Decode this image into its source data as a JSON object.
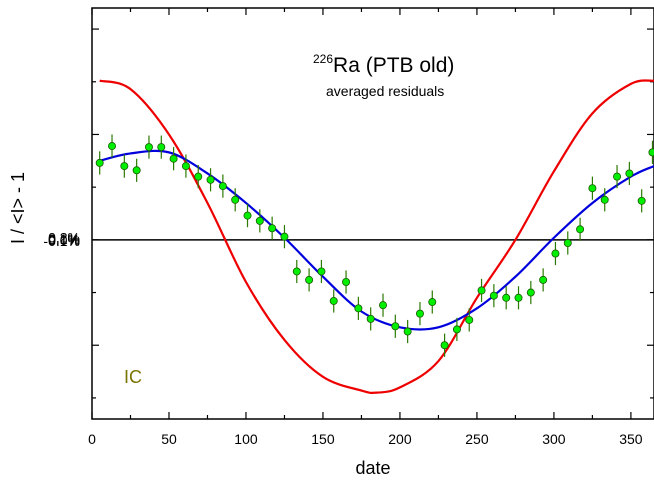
{
  "chart_data": {
    "type": "scatter",
    "title_sup": "226",
    "title_main": "Ra (PTB old)",
    "subtitle": "averaged residuals",
    "xlabel": "date",
    "ylabel": "I / <I> - 1",
    "xlim": [
      0,
      365
    ],
    "ylim": [
      -0.17,
      0.22
    ],
    "xticks": [
      "0",
      "50",
      "100",
      "150",
      "200",
      "250",
      "300",
      "350"
    ],
    "yticks": [
      "0.2%",
      "0.1%",
      "0.0%",
      "-0.1%"
    ],
    "ytick_values": [
      0.2,
      0.1,
      0.0,
      -0.1
    ],
    "xtick_values": [
      0,
      50,
      100,
      150,
      200,
      250,
      300,
      350
    ],
    "annotation": "IC",
    "colors": {
      "points": "#00ee00",
      "errorbars": "#2a7a00",
      "fit": "#0000dd",
      "reference": "#ee0000",
      "zero_line": "#000000",
      "annotation": "#7a7400"
    },
    "series": [
      {
        "kind": "points",
        "x": [
          5,
          13,
          21,
          29,
          37,
          45,
          53,
          61,
          69,
          77,
          85,
          93,
          101,
          109,
          117,
          125,
          133,
          141,
          149,
          157,
          165,
          173,
          181,
          189,
          197,
          205,
          213,
          221,
          229,
          237,
          245,
          253,
          261,
          269,
          277,
          285,
          293,
          301,
          309,
          317,
          325,
          333,
          341,
          349,
          357,
          364
        ],
        "y": [
          0.073,
          0.089,
          0.07,
          0.066,
          0.088,
          0.088,
          0.077,
          0.07,
          0.06,
          0.057,
          0.051,
          0.038,
          0.023,
          0.018,
          0.011,
          0.003,
          -0.03,
          -0.038,
          -0.03,
          -0.058,
          -0.04,
          -0.065,
          -0.075,
          -0.062,
          -0.082,
          -0.087,
          -0.07,
          -0.059,
          -0.1,
          -0.085,
          -0.076,
          -0.048,
          -0.053,
          -0.055,
          -0.055,
          -0.05,
          -0.038,
          -0.013,
          -0.003,
          0.01,
          0.049,
          0.038,
          0.06,
          0.063,
          0.037,
          0.083
        ],
        "err": 0.011
      },
      {
        "kind": "line",
        "color_key": "fit",
        "x": [
          5,
          25,
          50,
          75,
          100,
          125,
          150,
          175,
          200,
          225,
          250,
          275,
          300,
          325,
          350,
          365
        ],
        "y": [
          0.075,
          0.082,
          0.083,
          0.063,
          0.035,
          0.002,
          -0.035,
          -0.068,
          -0.083,
          -0.083,
          -0.065,
          -0.035,
          0.002,
          0.035,
          0.06,
          0.07
        ]
      },
      {
        "kind": "line",
        "color_key": "reference",
        "x": [
          5,
          25,
          50,
          75,
          100,
          125,
          150,
          175,
          185,
          200,
          225,
          250,
          275,
          300,
          325,
          350,
          365
        ],
        "y": [
          0.151,
          0.143,
          0.1,
          0.035,
          -0.04,
          -0.095,
          -0.13,
          -0.143,
          -0.145,
          -0.14,
          -0.115,
          -0.055,
          0.0,
          0.065,
          0.12,
          0.148,
          0.151
        ]
      }
    ]
  }
}
